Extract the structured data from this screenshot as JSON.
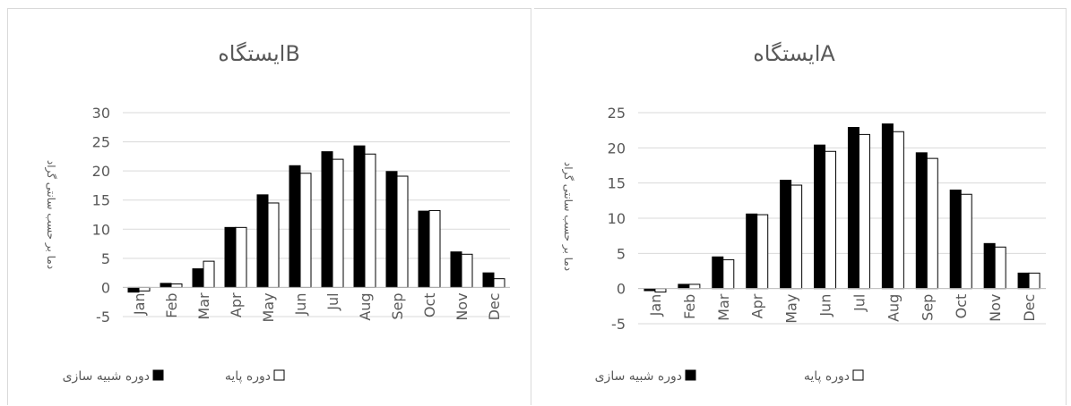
{
  "chart_data": [
    {
      "type": "bar",
      "title": "ایستگاهB",
      "ylabel": "دما بر حسب سانتی گراد",
      "xlabel": "",
      "ylim": [
        -5,
        30
      ],
      "yticks": [
        -5,
        0,
        5,
        10,
        15,
        20,
        25,
        30
      ],
      "categories": [
        "Jan",
        "Feb",
        "Mar",
        "Apr",
        "May",
        "Jun",
        "Jul",
        "Aug",
        "Sep",
        "Oct",
        "Nov",
        "Dec"
      ],
      "series": [
        {
          "name": "دوره شبیه سازی",
          "color": "#000000",
          "values": [
            -0.8,
            0.7,
            3.2,
            10.3,
            15.9,
            20.9,
            23.3,
            24.3,
            19.9,
            13.1,
            6.1,
            2.5
          ]
        },
        {
          "name": "دوره پایه",
          "color": "#ffffff",
          "values": [
            -0.6,
            0.6,
            4.5,
            10.3,
            14.5,
            19.6,
            22.0,
            22.9,
            19.1,
            13.2,
            5.7,
            1.5
          ]
        }
      ],
      "grid": true,
      "legend": "bottom"
    },
    {
      "type": "bar",
      "title": "ایستگاهA",
      "ylabel": "دما بر حسب سانتی گراد",
      "xlabel": "",
      "ylim": [
        -5,
        25
      ],
      "yticks": [
        -5,
        0,
        5,
        10,
        15,
        20,
        25
      ],
      "categories": [
        "Jan",
        "Feb",
        "Mar",
        "Apr",
        "May",
        "Jun",
        "Jul",
        "Aug",
        "Sep",
        "Oct",
        "Nov",
        "Dec"
      ],
      "series": [
        {
          "name": "دوره شبیه سازی",
          "color": "#000000",
          "values": [
            -0.3,
            0.6,
            4.5,
            10.6,
            15.4,
            20.4,
            22.9,
            23.4,
            19.3,
            14.0,
            6.4,
            2.2
          ]
        },
        {
          "name": "دوره پایه",
          "color": "#ffffff",
          "values": [
            -0.5,
            0.6,
            4.1,
            10.5,
            14.7,
            19.5,
            21.9,
            22.3,
            18.5,
            13.4,
            5.9,
            2.2
          ]
        }
      ],
      "grid": true,
      "legend": "bottom"
    }
  ]
}
